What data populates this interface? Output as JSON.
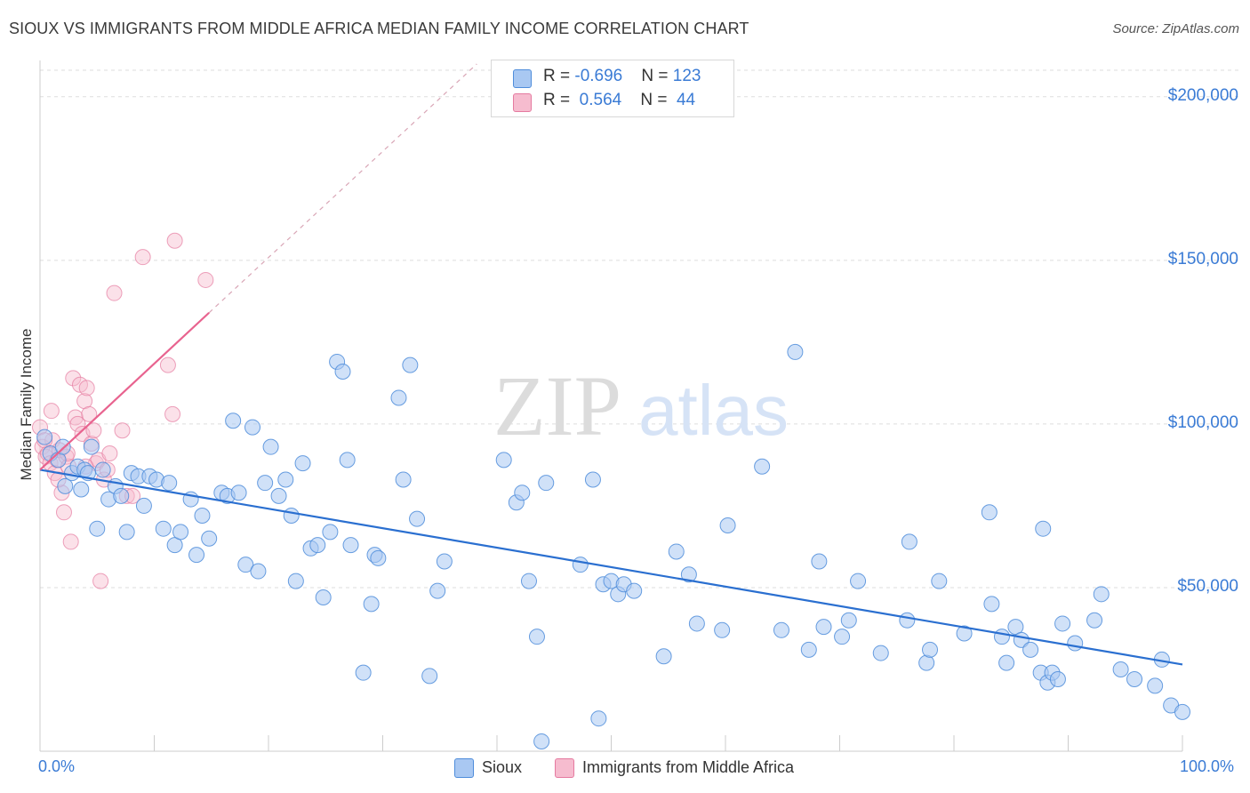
{
  "title": "SIOUX VS IMMIGRANTS FROM MIDDLE AFRICA MEDIAN FAMILY INCOME CORRELATION CHART",
  "source": "Source: ZipAtlas.com",
  "watermark": {
    "zip": "ZIP",
    "atlas": "atlas"
  },
  "colors": {
    "sioux_fill": "#a9c8f2",
    "sioux_stroke": "#4f8ddb",
    "sioux_line": "#2a6fd0",
    "imm_fill": "#f6bccf",
    "imm_stroke": "#e57aa0",
    "imm_line": "#e8638f",
    "tick_text": "#3a7bd5",
    "grid": "#dddddd"
  },
  "stats": [
    {
      "swatch": "sioux",
      "r_label": "R = ",
      "r": "-0.696",
      "n_label": "N = ",
      "n": "123"
    },
    {
      "swatch": "imm",
      "r_label": "R = ",
      "r": " 0.564",
      "n_label": "N = ",
      "n": " 44"
    }
  ],
  "legend": [
    {
      "swatch": "sioux",
      "label": "Sioux"
    },
    {
      "swatch": "imm",
      "label": "Immigrants from Middle Africa"
    }
  ],
  "chart_data": {
    "type": "scatter",
    "title": "SIOUX VS IMMIGRANTS FROM MIDDLE AFRICA MEDIAN FAMILY INCOME CORRELATION CHART",
    "xlabel": "",
    "ylabel": "Median Family Income",
    "xlim": [
      0,
      100
    ],
    "ylim": [
      0,
      210000
    ],
    "x_tick_labels": [
      "0.0%",
      "100.0%"
    ],
    "y_ticks": [
      50000,
      100000,
      150000,
      200000
    ],
    "y_tick_labels": [
      "$50,000",
      "$100,000",
      "$150,000",
      "$200,000"
    ],
    "grid": true,
    "legend_position": "bottom",
    "series": [
      {
        "name": "Sioux",
        "color": "#4f8ddb",
        "r": -0.696,
        "n": 123,
        "trend": {
          "x": [
            0,
            100
          ],
          "y": [
            86000,
            26500
          ]
        },
        "points": [
          [
            0.4,
            96000
          ],
          [
            0.9,
            91000
          ],
          [
            1.6,
            89000
          ],
          [
            2.2,
            81000
          ],
          [
            2.8,
            85000
          ],
          [
            3.3,
            87000
          ],
          [
            3.9,
            86000
          ],
          [
            4.5,
            93000
          ],
          [
            5.0,
            68000
          ],
          [
            5.5,
            86000
          ],
          [
            6.0,
            77000
          ],
          [
            6.6,
            81000
          ],
          [
            7.1,
            78000
          ],
          [
            7.6,
            67000
          ],
          [
            8.0,
            85000
          ],
          [
            8.6,
            84000
          ],
          [
            9.1,
            75000
          ],
          [
            9.6,
            84000
          ],
          [
            10.2,
            83000
          ],
          [
            10.8,
            68000
          ],
          [
            11.3,
            82000
          ],
          [
            11.8,
            63000
          ],
          [
            12.3,
            67000
          ],
          [
            13.2,
            77000
          ],
          [
            13.7,
            60000
          ],
          [
            14.2,
            72000
          ],
          [
            14.8,
            65000
          ],
          [
            15.9,
            79000
          ],
          [
            16.4,
            78000
          ],
          [
            16.9,
            101000
          ],
          [
            17.4,
            79000
          ],
          [
            18.0,
            57000
          ],
          [
            18.6,
            99000
          ],
          [
            19.1,
            55000
          ],
          [
            19.7,
            82000
          ],
          [
            20.2,
            93000
          ],
          [
            20.9,
            78000
          ],
          [
            21.5,
            83000
          ],
          [
            22.0,
            72000
          ],
          [
            22.4,
            52000
          ],
          [
            23.0,
            88000
          ],
          [
            23.7,
            62000
          ],
          [
            24.3,
            63000
          ],
          [
            24.8,
            47000
          ],
          [
            25.4,
            67000
          ],
          [
            26.0,
            119000
          ],
          [
            26.5,
            116000
          ],
          [
            26.9,
            89000
          ],
          [
            27.2,
            63000
          ],
          [
            28.3,
            24000
          ],
          [
            29.0,
            45000
          ],
          [
            29.3,
            60000
          ],
          [
            29.6,
            59000
          ],
          [
            31.4,
            108000
          ],
          [
            31.8,
            83000
          ],
          [
            32.4,
            118000
          ],
          [
            33.0,
            71000
          ],
          [
            34.1,
            23000
          ],
          [
            34.8,
            49000
          ],
          [
            35.4,
            58000
          ],
          [
            40.6,
            89000
          ],
          [
            41.7,
            76000
          ],
          [
            42.2,
            79000
          ],
          [
            42.8,
            52000
          ],
          [
            43.5,
            35000
          ],
          [
            44.3,
            82000
          ],
          [
            43.9,
            3000
          ],
          [
            47.3,
            57000
          ],
          [
            48.4,
            83000
          ],
          [
            48.9,
            10000
          ],
          [
            49.3,
            51000
          ],
          [
            50.0,
            52000
          ],
          [
            50.6,
            48000
          ],
          [
            51.1,
            51000
          ],
          [
            52.0,
            49000
          ],
          [
            54.6,
            29000
          ],
          [
            55.7,
            61000
          ],
          [
            56.8,
            54000
          ],
          [
            57.5,
            39000
          ],
          [
            59.7,
            37000
          ],
          [
            60.2,
            69000
          ],
          [
            63.2,
            87000
          ],
          [
            64.9,
            37000
          ],
          [
            66.1,
            122000
          ],
          [
            67.3,
            31000
          ],
          [
            68.2,
            58000
          ],
          [
            68.6,
            38000
          ],
          [
            70.2,
            35000
          ],
          [
            70.8,
            40000
          ],
          [
            71.6,
            52000
          ],
          [
            73.6,
            30000
          ],
          [
            75.9,
            40000
          ],
          [
            76.1,
            64000
          ],
          [
            77.6,
            27000
          ],
          [
            77.9,
            31000
          ],
          [
            78.7,
            52000
          ],
          [
            80.9,
            36000
          ],
          [
            83.1,
            73000
          ],
          [
            83.3,
            45000
          ],
          [
            84.2,
            35000
          ],
          [
            84.6,
            27000
          ],
          [
            85.4,
            38000
          ],
          [
            85.9,
            34000
          ],
          [
            86.7,
            31000
          ],
          [
            87.6,
            24000
          ],
          [
            88.2,
            21000
          ],
          [
            88.6,
            24000
          ],
          [
            89.1,
            22000
          ],
          [
            87.8,
            68000
          ],
          [
            89.5,
            39000
          ],
          [
            90.6,
            33000
          ],
          [
            92.3,
            40000
          ],
          [
            92.9,
            48000
          ],
          [
            94.6,
            25000
          ],
          [
            95.8,
            22000
          ],
          [
            97.6,
            20000
          ],
          [
            98.2,
            28000
          ],
          [
            99.0,
            14000
          ],
          [
            100.0,
            12000
          ],
          [
            2.0,
            93000
          ],
          [
            3.6,
            80000
          ],
          [
            4.2,
            85000
          ]
        ]
      },
      {
        "name": "Immigrants from Middle Africa",
        "color": "#e57aa0",
        "r": 0.564,
        "n": 44,
        "trend": {
          "x": [
            0,
            14.8
          ],
          "y": [
            86000,
            134000
          ]
        },
        "points": [
          [
            0.0,
            99000
          ],
          [
            0.2,
            93000
          ],
          [
            0.5,
            90000
          ],
          [
            0.7,
            91000
          ],
          [
            0.9,
            88000
          ],
          [
            1.1,
            95000
          ],
          [
            1.3,
            85000
          ],
          [
            1.5,
            89000
          ],
          [
            1.7,
            92000
          ],
          [
            1.9,
            79000
          ],
          [
            2.1,
            73000
          ],
          [
            2.3,
            90000
          ],
          [
            2.5,
            87000
          ],
          [
            2.7,
            64000
          ],
          [
            2.9,
            114000
          ],
          [
            3.1,
            102000
          ],
          [
            3.3,
            100000
          ],
          [
            3.5,
            112000
          ],
          [
            3.7,
            97000
          ],
          [
            3.9,
            107000
          ],
          [
            4.1,
            111000
          ],
          [
            4.3,
            103000
          ],
          [
            4.5,
            94000
          ],
          [
            4.7,
            98000
          ],
          [
            4.9,
            88000
          ],
          [
            5.1,
            89000
          ],
          [
            5.3,
            52000
          ],
          [
            5.6,
            83000
          ],
          [
            5.9,
            86000
          ],
          [
            6.1,
            91000
          ],
          [
            6.5,
            140000
          ],
          [
            7.2,
            98000
          ],
          [
            7.6,
            78000
          ],
          [
            8.1,
            78000
          ],
          [
            9.0,
            151000
          ],
          [
            11.2,
            118000
          ],
          [
            11.6,
            103000
          ],
          [
            11.8,
            156000
          ],
          [
            14.5,
            144000
          ],
          [
            1.0,
            104000
          ],
          [
            2.4,
            91000
          ],
          [
            0.4,
            95000
          ],
          [
            4.0,
            87000
          ],
          [
            1.6,
            83000
          ]
        ]
      }
    ]
  }
}
